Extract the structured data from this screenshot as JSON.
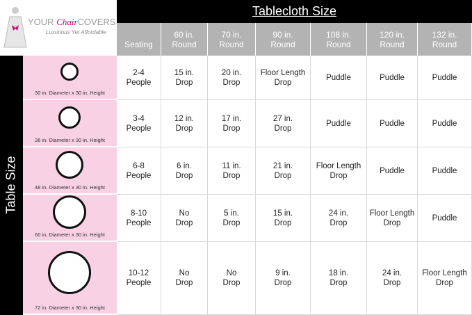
{
  "logo": {
    "brand": [
      "YOUR",
      "Chair",
      "COVERS"
    ],
    "tagline": "Luxurious Yet Affordable"
  },
  "column_title": "Tablecloth Size",
  "row_title": "Table Size",
  "table": {
    "header": [
      [
        "Seating"
      ],
      [
        "60 in.",
        "Round"
      ],
      [
        "70 in.",
        "Round"
      ],
      [
        "90 in.",
        "Round"
      ],
      [
        "108 in.",
        "Round"
      ],
      [
        "120 in.",
        "Round"
      ],
      [
        "132 in.",
        "Round"
      ]
    ],
    "rows": [
      {
        "table_label": "30 in. Diameter x 30 in. Height",
        "cells": [
          [
            "2-4",
            "People"
          ],
          [
            "15 in.",
            "Drop"
          ],
          [
            "20 in.",
            "Drop"
          ],
          [
            "Floor Length",
            "Drop"
          ],
          [
            "Puddle"
          ],
          [
            "Puddle"
          ],
          [
            "Puddle"
          ]
        ]
      },
      {
        "table_label": "36 in. Diameter x 30 in. Height",
        "cells": [
          [
            "3-4",
            "People"
          ],
          [
            "12 in.",
            "Drop"
          ],
          [
            "17 in.",
            "Drop"
          ],
          [
            "27 in.",
            "Drop"
          ],
          [
            "Puddle"
          ],
          [
            "Puddle"
          ],
          [
            "Puddle"
          ]
        ]
      },
      {
        "table_label": "48 in. Diameter x 30 in. Height",
        "cells": [
          [
            "6-8",
            "People"
          ],
          [
            "6 in.",
            "Drop"
          ],
          [
            "11 in.",
            "Drop"
          ],
          [
            "21 in.",
            "Drop"
          ],
          [
            "Floor Length",
            "Drop"
          ],
          [
            "Puddle"
          ],
          [
            "Puddle"
          ]
        ]
      },
      {
        "table_label": "60 in. Diameter x 30 in. Height",
        "cells": [
          [
            "8-10",
            "People"
          ],
          [
            "No",
            "Drop"
          ],
          [
            "5 in.",
            "Drop"
          ],
          [
            "15 in.",
            "Drop"
          ],
          [
            "24 in.",
            "Drop"
          ],
          [
            "Floor Length",
            "Drop"
          ],
          [
            "Puddle"
          ]
        ]
      },
      {
        "table_label": "72 in. Diameter x 30 in. Height",
        "cells": [
          [
            "10-12",
            "People"
          ],
          [
            "No",
            "Drop"
          ],
          [
            "No",
            "Drop"
          ],
          [
            "9 in.",
            "Drop"
          ],
          [
            "18 in.",
            "Drop"
          ],
          [
            "24 in.",
            "Drop"
          ],
          [
            "Floor Length",
            "Drop"
          ]
        ]
      }
    ]
  }
}
